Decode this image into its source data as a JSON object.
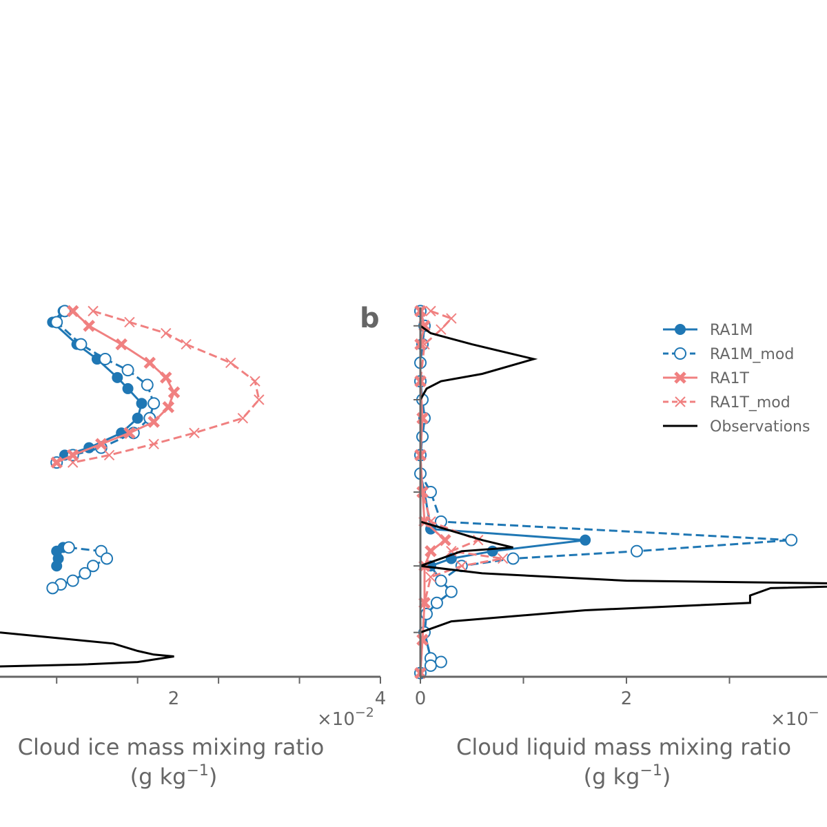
{
  "colors": {
    "RA1M": "#1f77b4",
    "RA1M_mod": "#1f77b4",
    "RA1T": "#f08080",
    "RA1T_mod": "#f08080",
    "Observations": "#000000",
    "axis": "#666666"
  },
  "panels": {
    "a": {
      "xlabel_line1": "Cloud ice mass mixing ratio",
      "xlabel_line2": "(g kg",
      "xlabel_unit_sup": "−1",
      "xlabel_close": ")",
      "offset_text": "×10",
      "offset_exp": "−2",
      "tick_labels": [
        "2",
        "4"
      ]
    },
    "b": {
      "letter": "b",
      "xlabel_line1": "Cloud liquid mass mixing ratio",
      "xlabel_line2": "(g kg",
      "xlabel_unit_sup": "−1",
      "xlabel_close": ")",
      "offset_text": "×10",
      "offset_exp": "−",
      "tick_labels": [
        "0",
        "2"
      ]
    }
  },
  "legend": {
    "items": [
      "RA1M",
      "RA1M_mod",
      "RA1T",
      "RA1T_mod",
      "Observations"
    ]
  },
  "chart_data": [
    {
      "type": "line",
      "panel": "a",
      "xlabel": "Cloud ice mass mixing ratio (g kg−1)",
      "x_scale_factor": "×10−2",
      "xlim": [
        -0.7,
        4
      ],
      "ylim": [
        0,
        1
      ],
      "y_note": "vertical coordinate unlabelled in visible portion; values normalized 0 (bottom) to 1 (top)",
      "series": [
        {
          "name": "RA1M",
          "style": "solid",
          "marker": "filled-circle",
          "points": [
            [
              0.08,
              0.99
            ],
            [
              -0.05,
              0.96
            ],
            [
              0.25,
              0.9
            ],
            [
              0.5,
              0.86
            ],
            [
              0.75,
              0.81
            ],
            [
              0.88,
              0.78
            ],
            [
              1.05,
              0.74
            ],
            [
              1.0,
              0.7
            ],
            [
              0.8,
              0.66
            ],
            [
              0.4,
              0.62
            ],
            [
              0.1,
              0.6
            ],
            [
              0.0,
              0.58
            ]
          ]
        },
        {
          "name": "RA1M",
          "style": "solid",
          "marker": "filled-circle",
          "points": [
            [
              0.08,
              0.35
            ],
            [
              0.0,
              0.34
            ],
            [
              0.02,
              0.32
            ],
            [
              0.0,
              0.3
            ]
          ]
        },
        {
          "name": "RA1M_mod",
          "style": "dashed",
          "marker": "open-circle",
          "points": [
            [
              0.1,
              0.99
            ],
            [
              0.0,
              0.96
            ],
            [
              0.3,
              0.9
            ],
            [
              0.6,
              0.86
            ],
            [
              0.88,
              0.83
            ],
            [
              1.12,
              0.79
            ],
            [
              1.2,
              0.74
            ],
            [
              1.15,
              0.7
            ],
            [
              0.95,
              0.66
            ],
            [
              0.55,
              0.62
            ],
            [
              0.2,
              0.6
            ],
            [
              0.0,
              0.58
            ]
          ]
        },
        {
          "name": "RA1M_mod",
          "style": "dashed",
          "marker": "open-circle",
          "points": [
            [
              0.15,
              0.35
            ],
            [
              0.55,
              0.34
            ],
            [
              0.62,
              0.32
            ],
            [
              0.45,
              0.3
            ],
            [
              0.35,
              0.28
            ],
            [
              0.2,
              0.26
            ],
            [
              0.05,
              0.25
            ],
            [
              -0.05,
              0.24
            ]
          ]
        },
        {
          "name": "RA1T",
          "style": "solid",
          "marker": "x",
          "points": [
            [
              0.2,
              0.99
            ],
            [
              0.4,
              0.95
            ],
            [
              0.8,
              0.9
            ],
            [
              1.15,
              0.85
            ],
            [
              1.35,
              0.81
            ],
            [
              1.45,
              0.77
            ],
            [
              1.38,
              0.73
            ],
            [
              1.2,
              0.69
            ],
            [
              0.9,
              0.66
            ],
            [
              0.55,
              0.63
            ],
            [
              0.2,
              0.6
            ],
            [
              0.0,
              0.58
            ]
          ]
        },
        {
          "name": "RA1T_mod",
          "style": "dashed",
          "marker": "x",
          "points": [
            [
              0.45,
              0.99
            ],
            [
              0.9,
              0.96
            ],
            [
              1.35,
              0.93
            ],
            [
              1.6,
              0.9
            ],
            [
              2.15,
              0.85
            ],
            [
              2.45,
              0.8
            ],
            [
              2.5,
              0.75
            ],
            [
              2.3,
              0.7
            ],
            [
              1.7,
              0.66
            ],
            [
              1.2,
              0.63
            ],
            [
              0.65,
              0.6
            ],
            [
              0.2,
              0.58
            ]
          ]
        },
        {
          "name": "Observations",
          "style": "solid",
          "marker": "none",
          "points": [
            [
              -0.7,
              0.12
            ],
            [
              0.0,
              0.105
            ],
            [
              0.7,
              0.09
            ],
            [
              1.0,
              0.07
            ],
            [
              1.2,
              0.06
            ],
            [
              1.45,
              0.055
            ],
            [
              1.0,
              0.04
            ],
            [
              0.3,
              0.033
            ],
            [
              -0.7,
              0.028
            ]
          ]
        }
      ]
    },
    {
      "type": "line",
      "panel": "b",
      "xlabel": "Cloud liquid mass mixing ratio (g kg−1)",
      "x_scale_factor": "×10−",
      "xlim": [
        0,
        2.0
      ],
      "ylim": [
        0,
        1
      ],
      "y_note": "vertical coordinate unlabelled; values normalized 0 (bottom) to 1 (top)",
      "series": [
        {
          "name": "RA1M",
          "style": "solid",
          "marker": "filled-circle",
          "points": [
            [
              0.0,
              0.99
            ],
            [
              0.02,
              0.95
            ],
            [
              0.01,
              0.9
            ],
            [
              0.0,
              0.85
            ],
            [
              0.0,
              0.8
            ],
            [
              0.01,
              0.75
            ],
            [
              0.02,
              0.7
            ],
            [
              0.01,
              0.65
            ],
            [
              0.0,
              0.6
            ],
            [
              0.0,
              0.55
            ],
            [
              0.02,
              0.5
            ],
            [
              0.05,
              0.4
            ],
            [
              0.8,
              0.37
            ],
            [
              0.35,
              0.34
            ],
            [
              0.15,
              0.32
            ],
            [
              0.05,
              0.3
            ],
            [
              0.1,
              0.26
            ],
            [
              0.15,
              0.23
            ],
            [
              0.08,
              0.2
            ],
            [
              0.03,
              0.17
            ],
            [
              0.02,
              0.12
            ],
            [
              0.05,
              0.05
            ],
            [
              0.1,
              0.04
            ],
            [
              0.05,
              0.03
            ],
            [
              0.0,
              0.01
            ]
          ]
        },
        {
          "name": "RA1M_mod",
          "style": "dashed",
          "marker": "open-circle",
          "points": [
            [
              0.0,
              0.99
            ],
            [
              0.02,
              0.95
            ],
            [
              0.01,
              0.9
            ],
            [
              0.0,
              0.85
            ],
            [
              0.0,
              0.8
            ],
            [
              0.01,
              0.75
            ],
            [
              0.02,
              0.7
            ],
            [
              0.01,
              0.65
            ],
            [
              0.0,
              0.6
            ],
            [
              0.0,
              0.55
            ],
            [
              0.05,
              0.5
            ],
            [
              0.1,
              0.42
            ],
            [
              1.8,
              0.37
            ],
            [
              1.05,
              0.34
            ],
            [
              0.45,
              0.32
            ],
            [
              0.2,
              0.3
            ],
            [
              0.1,
              0.26
            ],
            [
              0.15,
              0.23
            ],
            [
              0.08,
              0.2
            ],
            [
              0.03,
              0.17
            ],
            [
              0.02,
              0.12
            ],
            [
              0.05,
              0.05
            ],
            [
              0.1,
              0.04
            ],
            [
              0.05,
              0.03
            ],
            [
              0.0,
              0.01
            ]
          ]
        },
        {
          "name": "RA1T",
          "style": "solid",
          "marker": "x",
          "points": [
            [
              0.0,
              0.99
            ],
            [
              0.02,
              0.95
            ],
            [
              0.0,
              0.9
            ],
            [
              0.0,
              0.8
            ],
            [
              0.01,
              0.7
            ],
            [
              0.0,
              0.6
            ],
            [
              0.01,
              0.5
            ],
            [
              0.02,
              0.42
            ],
            [
              0.12,
              0.37
            ],
            [
              0.05,
              0.34
            ],
            [
              0.02,
              0.3
            ],
            [
              0.02,
              0.2
            ],
            [
              0.01,
              0.1
            ],
            [
              0.0,
              0.01
            ]
          ]
        },
        {
          "name": "RA1T_mod",
          "style": "dashed",
          "marker": "x",
          "points": [
            [
              0.05,
              0.99
            ],
            [
              0.15,
              0.97
            ],
            [
              0.1,
              0.94
            ],
            [
              0.02,
              0.9
            ],
            [
              0.0,
              0.8
            ],
            [
              0.01,
              0.7
            ],
            [
              0.0,
              0.6
            ],
            [
              0.01,
              0.5
            ],
            [
              0.05,
              0.42
            ],
            [
              0.28,
              0.37
            ],
            [
              0.15,
              0.34
            ],
            [
              0.4,
              0.32
            ],
            [
              0.2,
              0.3
            ],
            [
              0.05,
              0.27
            ],
            [
              0.02,
              0.2
            ],
            [
              0.01,
              0.1
            ],
            [
              0.0,
              0.01
            ]
          ]
        },
        {
          "name": "Observations",
          "style": "solid",
          "marker": "none",
          "points": [
            [
              0.0,
              0.75
            ],
            [
              0.03,
              0.78
            ],
            [
              0.1,
              0.8
            ],
            [
              0.3,
              0.82
            ],
            [
              0.55,
              0.86
            ],
            [
              0.25,
              0.9
            ],
            [
              0.05,
              0.93
            ],
            [
              0.0,
              0.95
            ],
            [
              0.0,
              0.6
            ],
            [
              0.0,
              0.42
            ],
            [
              0.3,
              0.37
            ],
            [
              0.45,
              0.35
            ],
            [
              0.2,
              0.34
            ],
            [
              0.0,
              0.3
            ],
            [
              0.3,
              0.28
            ],
            [
              1.0,
              0.26
            ],
            [
              2.4,
              0.25
            ],
            [
              1.7,
              0.24
            ],
            [
              1.6,
              0.22
            ],
            [
              1.6,
              0.2
            ],
            [
              0.8,
              0.18
            ],
            [
              0.15,
              0.15
            ],
            [
              0.0,
              0.12
            ],
            [
              0.0,
              0.05
            ],
            [
              0.0,
              0.01
            ]
          ]
        }
      ]
    }
  ]
}
